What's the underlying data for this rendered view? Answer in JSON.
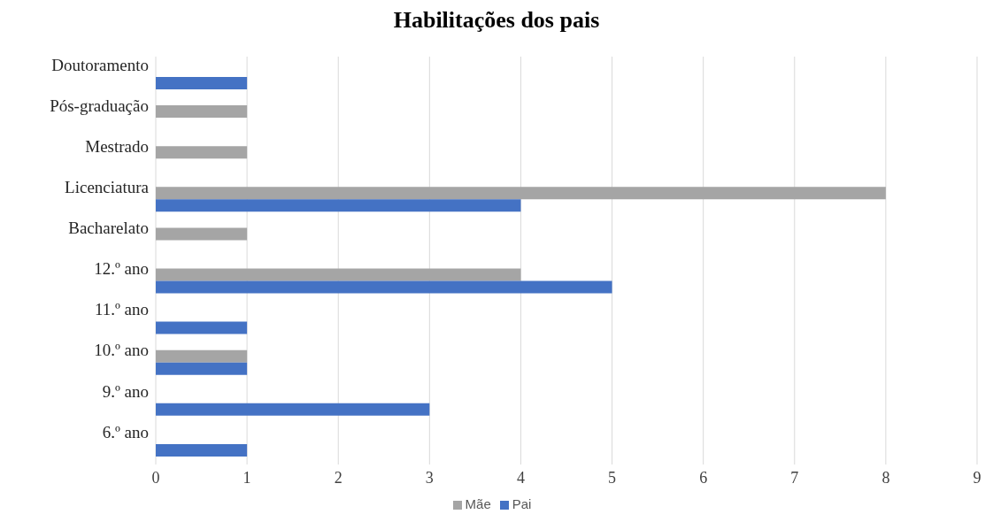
{
  "chart_data": {
    "type": "bar",
    "orientation": "horizontal",
    "title": "Habilitações dos pais",
    "categories": [
      "Doutoramento",
      "Pós-graduação",
      "Mestrado",
      "Licenciatura",
      "Bacharelato",
      "12.º ano",
      "11.º ano",
      "10.º ano",
      "9.º ano",
      "6.º ano"
    ],
    "series": [
      {
        "name": "Mãe",
        "color": "#a5a5a5",
        "values": [
          0,
          1,
          1,
          8,
          1,
          4,
          0,
          1,
          0,
          0
        ]
      },
      {
        "name": "Pai",
        "color": "#4472c4",
        "values": [
          1,
          0,
          0,
          4,
          0,
          5,
          1,
          1,
          3,
          1
        ]
      }
    ],
    "xlim": [
      0,
      9
    ],
    "xticks": [
      0,
      1,
      2,
      3,
      4,
      5,
      6,
      7,
      8,
      9
    ],
    "grid": "x",
    "legend": "bottom"
  }
}
